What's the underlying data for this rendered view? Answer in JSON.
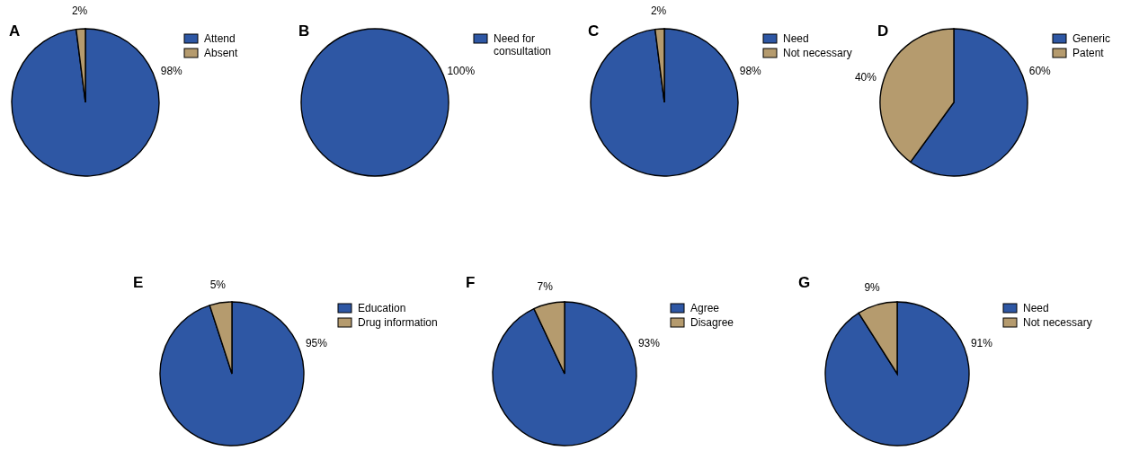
{
  "chart_data": [
    {
      "type": "pie",
      "title": "A",
      "categories": [
        "Attend",
        "Absent"
      ],
      "values": [
        98,
        2
      ],
      "colors": [
        "#2e57a4",
        "#b59b6e"
      ],
      "value_labels": [
        "98%",
        "2%"
      ],
      "legend": "top right"
    },
    {
      "type": "pie",
      "title": "B",
      "categories": [
        "Need for consultation"
      ],
      "values": [
        100
      ],
      "colors": [
        "#2e57a4"
      ],
      "value_labels": [
        "100%"
      ],
      "legend": "top right"
    },
    {
      "type": "pie",
      "title": "C",
      "categories": [
        "Need",
        "Not necessary"
      ],
      "values": [
        98,
        2
      ],
      "colors": [
        "#2e57a4",
        "#b59b6e"
      ],
      "value_labels": [
        "98%",
        "2%"
      ],
      "legend": "top right"
    },
    {
      "type": "pie",
      "title": "D",
      "categories": [
        "Generic",
        "Patent"
      ],
      "values": [
        60,
        40
      ],
      "colors": [
        "#2e57a4",
        "#b59b6e"
      ],
      "value_labels": [
        "60%",
        "40%"
      ],
      "legend": "top right"
    },
    {
      "type": "pie",
      "title": "E",
      "categories": [
        "Education",
        "Drug information"
      ],
      "values": [
        95,
        5
      ],
      "colors": [
        "#2e57a4",
        "#b59b6e"
      ],
      "value_labels": [
        "95%",
        "5%"
      ],
      "legend": "top right"
    },
    {
      "type": "pie",
      "title": "F",
      "categories": [
        "Agree",
        "Disagree"
      ],
      "values": [
        93,
        7
      ],
      "colors": [
        "#2e57a4",
        "#b59b6e"
      ],
      "value_labels": [
        "93%",
        "7%"
      ],
      "legend": "top right"
    },
    {
      "type": "pie",
      "title": "G",
      "categories": [
        "Need",
        "Not necessary"
      ],
      "values": [
        91,
        9
      ],
      "colors": [
        "#2e57a4",
        "#b59b6e"
      ],
      "value_labels": [
        "91%",
        "9%"
      ],
      "legend": "top right"
    }
  ]
}
